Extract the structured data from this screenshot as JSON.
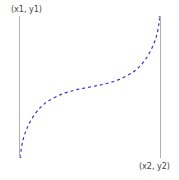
{
  "chart_data": {
    "type": "line",
    "x": [
      0,
      0.02,
      0.05,
      0.1,
      0.15,
      0.2,
      0.3,
      0.4,
      0.5,
      0.6,
      0.7,
      0.8,
      0.85,
      0.9,
      0.95,
      0.98,
      1
    ],
    "values": [
      0,
      0.12,
      0.21,
      0.3,
      0.36,
      0.4,
      0.45,
      0.48,
      0.5,
      0.52,
      0.55,
      0.6,
      0.64,
      0.7,
      0.79,
      0.88,
      1
    ],
    "color": "#3333cc",
    "line_style": "dot",
    "marker": "ends",
    "xlim": [
      0,
      1
    ],
    "ylim": [
      0,
      1
    ],
    "tick_labels": false,
    "grid": false,
    "annotations": [
      "(x1, y1)",
      "(x2, y2)"
    ]
  }
}
